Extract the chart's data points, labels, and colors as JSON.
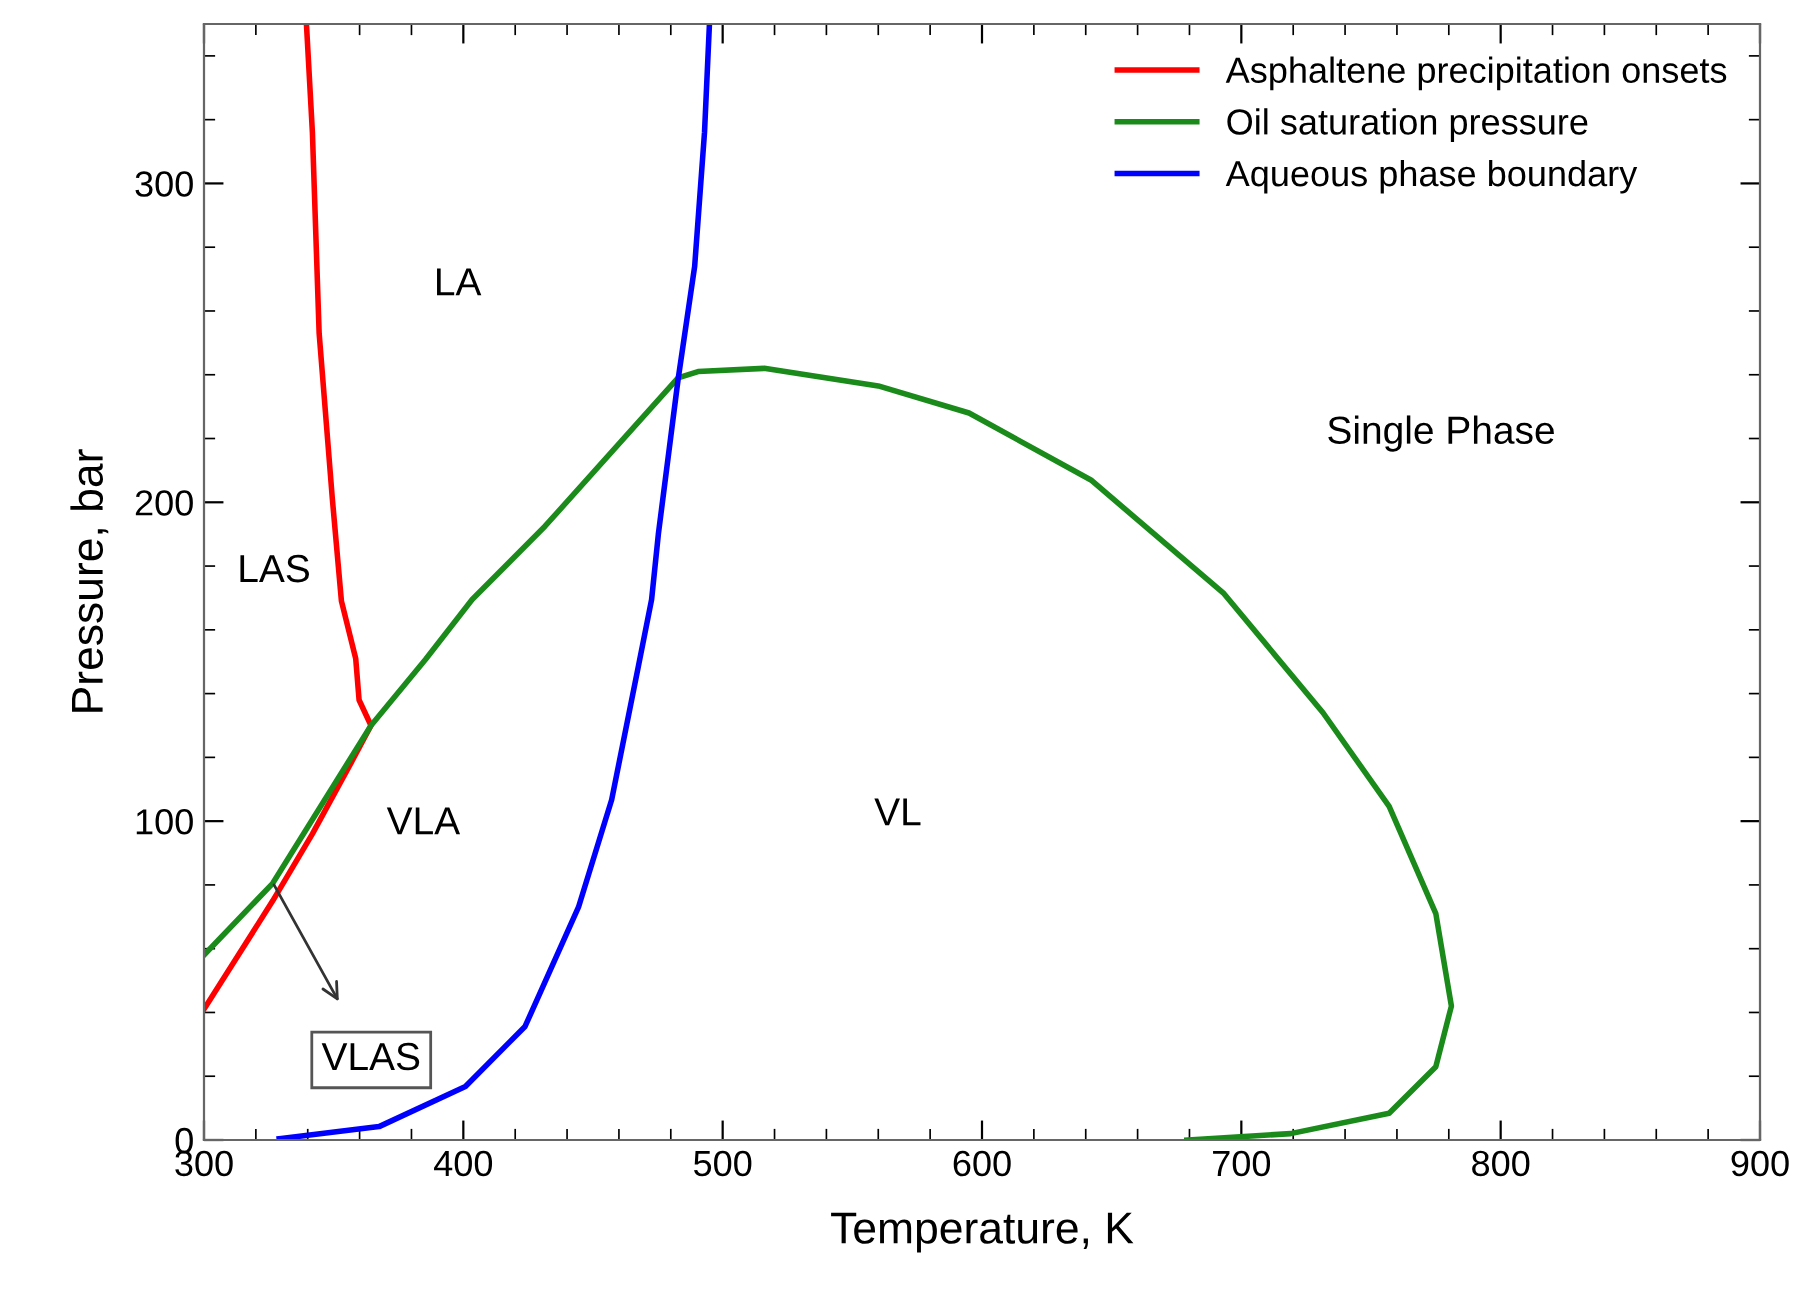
{
  "chart_data": {
    "type": "line",
    "xlabel": "Temperature, K",
    "ylabel": "Pressure, bar",
    "xlim": [
      300,
      900
    ],
    "ylim": [
      0,
      350
    ],
    "xticks": [
      300,
      {
        "value": 320,
        "label": null
      },
      {
        "value": 340,
        "label": null
      },
      {
        "value": 360,
        "label": null
      },
      {
        "value": 380,
        "label": null
      },
      400,
      {
        "value": 420,
        "label": null
      },
      {
        "value": 440,
        "label": null
      },
      {
        "value": 460,
        "label": null
      },
      {
        "value": 480,
        "label": null
      },
      500,
      {
        "value": 520,
        "label": null
      },
      {
        "value": 540,
        "label": null
      },
      {
        "value": 560,
        "label": null
      },
      {
        "value": 580,
        "label": null
      },
      600,
      {
        "value": 620,
        "label": null
      },
      {
        "value": 640,
        "label": null
      },
      {
        "value": 660,
        "label": null
      },
      {
        "value": 680,
        "label": null
      },
      700,
      {
        "value": 720,
        "label": null
      },
      {
        "value": 740,
        "label": null
      },
      {
        "value": 760,
        "label": null
      },
      {
        "value": 780,
        "label": null
      },
      800,
      {
        "value": 820,
        "label": null
      },
      {
        "value": 840,
        "label": null
      },
      {
        "value": 860,
        "label": null
      },
      {
        "value": 880,
        "label": null
      },
      900
    ],
    "yticks": [
      0,
      {
        "value": 20,
        "label": null
      },
      {
        "value": 40,
        "label": null
      },
      {
        "value": 60,
        "label": null
      },
      {
        "value": 80,
        "label": null
      },
      100,
      {
        "value": 120,
        "label": null
      },
      {
        "value": 140,
        "label": null
      },
      {
        "value": 160,
        "label": null
      },
      {
        "value": 180,
        "label": null
      },
      200,
      {
        "value": 220,
        "label": null
      },
      {
        "value": 240,
        "label": null
      },
      {
        "value": 260,
        "label": null
      },
      {
        "value": 280,
        "label": null
      },
      300,
      {
        "value": 320,
        "label": null
      },
      {
        "value": 340,
        "label": null
      }
    ],
    "grid": false,
    "legend": "top right",
    "marker": "none",
    "line_style": "solid",
    "series": [
      {
        "name": "Asphaltene precipitation onsets",
        "color": "#ff0000",
        "x": [
          339.5,
          341.8,
          344.4,
          349.5,
          353,
          358.5,
          359.8,
          364.4,
          357.2,
          341.8,
          326.5,
          300
        ],
        "values": [
          350,
          316,
          253,
          201,
          169,
          151,
          138,
          130,
          119,
          96,
          75,
          41
        ]
      },
      {
        "name": "Oil saturation pressure",
        "color": "#1a8a1a",
        "x": [
          300,
          326.5,
          364.4,
          385.4,
          403.4,
          431.5,
          482.8,
          490.5,
          516,
          560,
          595,
          642,
          693,
          731.5,
          757,
          775,
          781,
          775,
          757,
          719,
          679
        ],
        "values": [
          58,
          80.5,
          130,
          150.7,
          169.5,
          192.5,
          239,
          241,
          242,
          236.5,
          228,
          207,
          171.6,
          134,
          104.6,
          71,
          42,
          23,
          8.4,
          2,
          0
        ]
      },
      {
        "name": "Aqueous phase boundary",
        "color": "#0000ff",
        "x": [
          329,
          367.5,
          400.8,
          423.8,
          444.4,
          457.2,
          467.5,
          472.6,
          475.2,
          482.8,
          489.2,
          493,
          494.9
        ],
        "values": [
          0.4,
          4.2,
          16.8,
          35.6,
          73,
          106.7,
          148.6,
          169.5,
          190,
          238.5,
          274,
          316,
          350
        ]
      }
    ],
    "annotations": [
      "LA",
      "LAS",
      "VLA",
      "VL",
      "Single Phase",
      {
        "text": "VLAS",
        "x": 327,
        "y": 80
      }
    ]
  }
}
